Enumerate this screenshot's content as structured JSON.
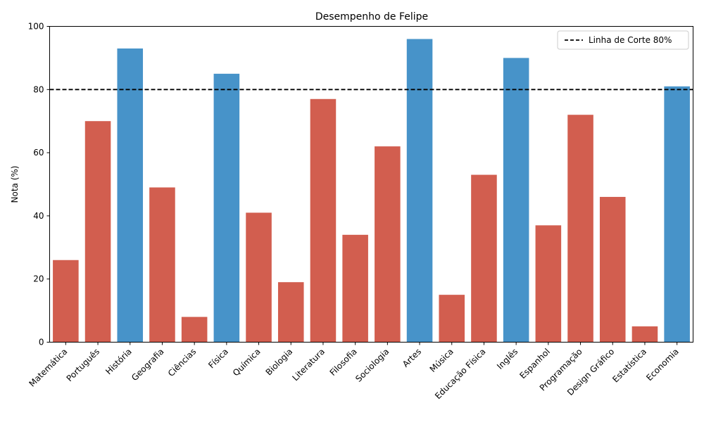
{
  "chart_data": {
    "type": "bar",
    "title": "Desempenho de Felipe",
    "xlabel": "",
    "ylabel": "Nota (%)",
    "ylim": [
      0,
      100
    ],
    "yticks": [
      0,
      20,
      40,
      60,
      80,
      100
    ],
    "categories": [
      "Matemática",
      "Português",
      "História",
      "Geografia",
      "Ciências",
      "Física",
      "Química",
      "Biologia",
      "Literatura",
      "Filosofia",
      "Sociologia",
      "Artes",
      "Música",
      "Educação Física",
      "Inglês",
      "Espanhol",
      "Programação",
      "Design Gráfico",
      "Estatística",
      "Economia"
    ],
    "values": [
      26,
      70,
      93,
      49,
      8,
      85,
      41,
      19,
      77,
      34,
      62,
      96,
      15,
      53,
      90,
      37,
      72,
      46,
      5,
      81
    ],
    "threshold": {
      "value": 80,
      "label": "Linha de Corte 80%",
      "color": "#000000",
      "style": "dashed"
    },
    "colors": {
      "above": "#4793c9",
      "below": "#d25e4f"
    },
    "grid": false,
    "legend_position": "top-right"
  }
}
